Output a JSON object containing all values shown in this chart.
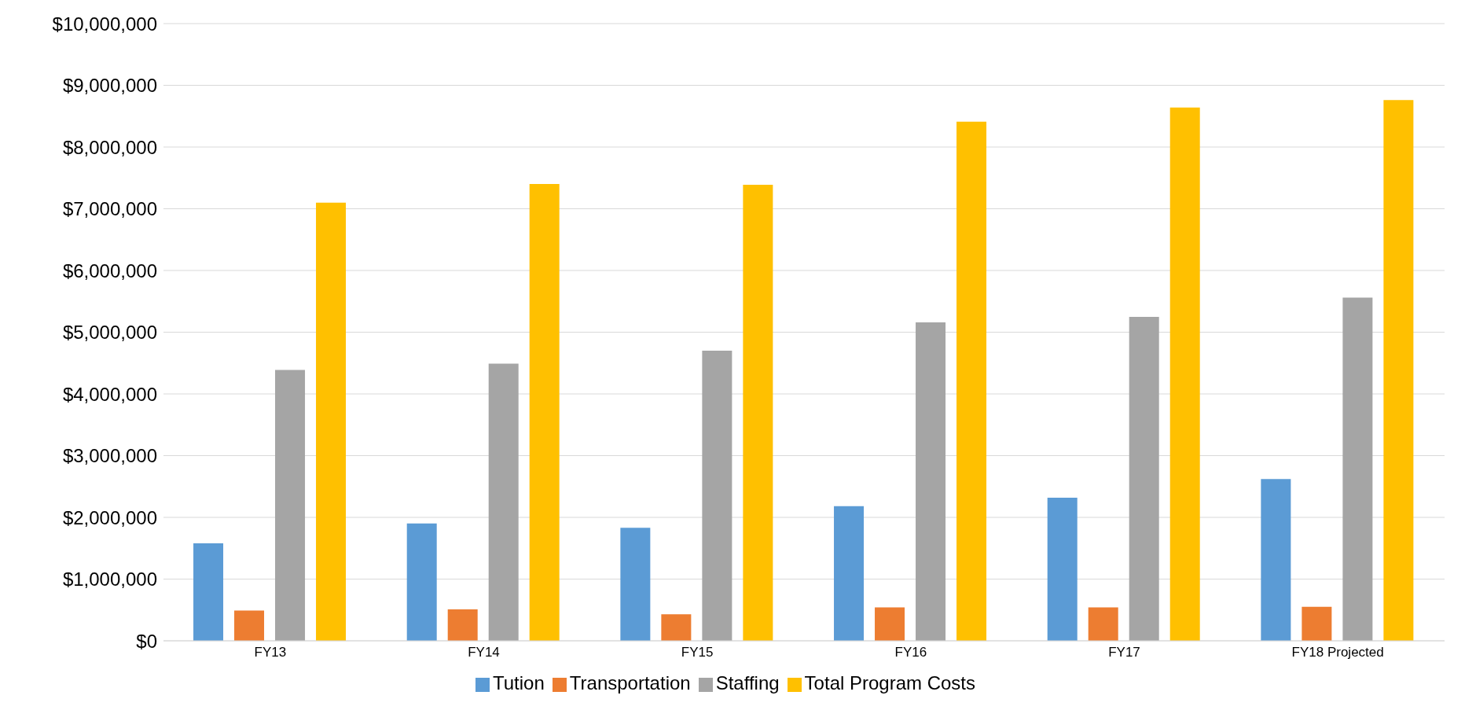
{
  "chart_data": {
    "type": "bar",
    "categories": [
      "FY13",
      "FY14",
      "FY15",
      "FY16",
      "FY17",
      "FY18 Projected"
    ],
    "series": [
      {
        "name": "Tution",
        "color": "#5b9bd5",
        "values": [
          1580000,
          1900000,
          1830000,
          2180000,
          2320000,
          2620000
        ]
      },
      {
        "name": "Transportation",
        "color": "#ed7d31",
        "values": [
          490000,
          510000,
          430000,
          540000,
          540000,
          550000
        ]
      },
      {
        "name": "Staffing",
        "color": "#a5a5a5",
        "values": [
          4390000,
          4490000,
          4700000,
          5160000,
          5250000,
          5560000
        ]
      },
      {
        "name": "Total Program Costs",
        "color": "#ffc000",
        "values": [
          7100000,
          7400000,
          7390000,
          8410000,
          8640000,
          8760000
        ]
      }
    ],
    "ylim": [
      0,
      10000000
    ],
    "yticks": [
      {
        "value": 0,
        "label": "$0"
      },
      {
        "value": 1000000,
        "label": "$1,000,000"
      },
      {
        "value": 2000000,
        "label": "$2,000,000"
      },
      {
        "value": 3000000,
        "label": "$3,000,000"
      },
      {
        "value": 4000000,
        "label": "$4,000,000"
      },
      {
        "value": 5000000,
        "label": "$5,000,000"
      },
      {
        "value": 6000000,
        "label": "$6,000,000"
      },
      {
        "value": 7000000,
        "label": "$7,000,000"
      },
      {
        "value": 8000000,
        "label": "$8,000,000"
      },
      {
        "value": 9000000,
        "label": "$9,000,000"
      },
      {
        "value": 10000000,
        "label": "$10,000,000"
      }
    ],
    "grid": "y",
    "legend": "bottom"
  }
}
